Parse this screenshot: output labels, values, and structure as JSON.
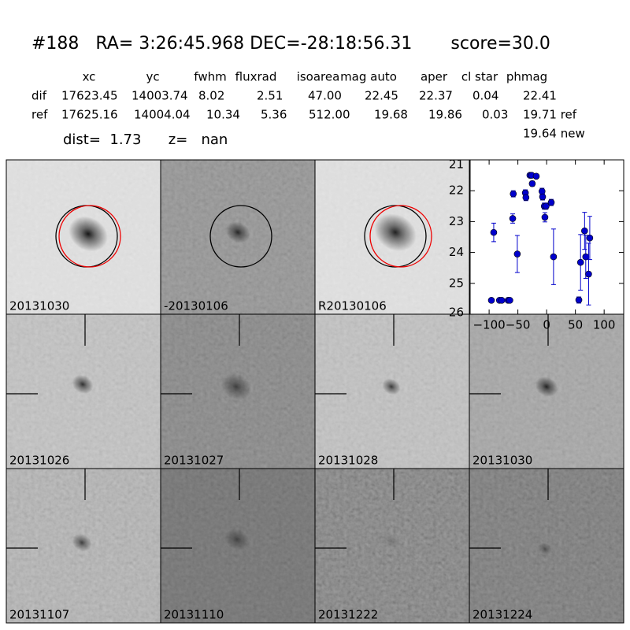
{
  "header": {
    "title": "#188   RA= 3:26:45.968 DEC=-28:18:56.31       score=30.0",
    "columns": [
      "xc",
      "yc",
      "fwhm",
      "fluxrad",
      "isoarea",
      "mag auto",
      "aper",
      "cl star",
      "phmag"
    ],
    "rows": [
      {
        "label": "dif",
        "cells": [
          "17623.45",
          "14003.74",
          "8.02",
          "2.51",
          "47.00",
          "22.45",
          "22.37",
          "0.04",
          "22.41"
        ]
      },
      {
        "label": "ref",
        "cells": [
          "17625.16",
          "14004.04",
          "10.34",
          "5.36",
          "512.00",
          "19.68",
          "19.86",
          "0.03",
          "19.71 ref"
        ]
      }
    ],
    "new": "19.64 new",
    "dist": "dist=  1.73      z=   nan"
  },
  "panels": [
    {
      "label": "20131030"
    },
    {
      "label": "-20130106"
    },
    {
      "label": "R20130106"
    },
    {
      "label": "20131026"
    },
    {
      "label": "20131027"
    },
    {
      "label": "20131028"
    },
    {
      "label": "20131030",
      "color": "#ff0000"
    },
    {
      "label": "20131107"
    },
    {
      "label": "20131110"
    },
    {
      "label": "20131222"
    },
    {
      "label": "20131224"
    }
  ],
  "chart_data": {
    "type": "scatter",
    "color": "#0000cc",
    "x": [
      -92,
      -96,
      -82,
      -78,
      -67,
      -64,
      -58,
      -59,
      -51,
      -37,
      -36,
      -29,
      -25,
      -26,
      -18,
      -8,
      -7,
      -4,
      -3,
      -1,
      8,
      12,
      56,
      59,
      66,
      68,
      73,
      75
    ],
    "values": [
      23.35,
      25.55,
      25.55,
      25.55,
      25.55,
      25.55,
      22.1,
      22.9,
      24.05,
      22.07,
      22.22,
      21.5,
      21.77,
      21.5,
      21.53,
      22.02,
      22.2,
      22.5,
      22.86,
      22.5,
      22.38,
      24.14,
      25.54,
      24.32,
      23.3,
      24.14,
      24.7,
      23.53
    ],
    "errors": [
      0.3,
      0.05,
      0.05,
      0.05,
      0.05,
      0.05,
      0.1,
      0.15,
      0.6,
      0.1,
      0.1,
      0.05,
      0.08,
      0.05,
      0.05,
      0.1,
      0.1,
      0.1,
      0.15,
      0.1,
      0.1,
      0.9,
      0.1,
      0.9,
      0.6,
      0.7,
      1.0,
      0.7
    ],
    "xlim": [
      -133,
      134
    ],
    "ylim": [
      26,
      21
    ],
    "xticks": [
      {
        "value": -100,
        "label": "−100"
      },
      {
        "value": -50,
        "label": "−50"
      },
      0,
      50,
      100
    ],
    "yticks": [
      21,
      22,
      23,
      24,
      25,
      26
    ]
  }
}
